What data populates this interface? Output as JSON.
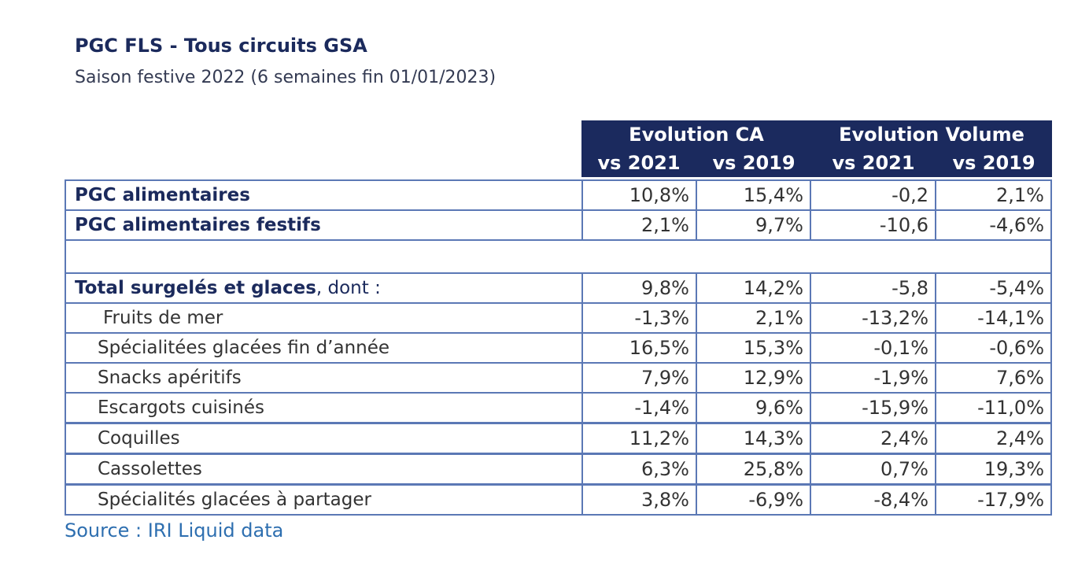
{
  "title": "PGC FLS - Tous circuits GSA",
  "subtitle": "Saison festive 2022 (6 semaines fin 01/01/2023)",
  "header": {
    "group1": "Evolution CA",
    "group2": "Evolution Volume",
    "cols": [
      "vs 2021",
      "vs 2019",
      "vs 2021",
      "vs 2019"
    ]
  },
  "rows": [
    {
      "label": "PGC alimentaires",
      "suffix": "",
      "values": [
        "10,8%",
        "15,4%",
        "-0,2",
        "2,1%"
      ]
    },
    {
      "label": "PGC alimentaires festifs",
      "suffix": "",
      "values": [
        "2,1%",
        "9,7%",
        "-10,6",
        "-4,6%"
      ]
    },
    {
      "label": "Total surgelés et glaces",
      "suffix": ", dont :",
      "values": [
        "9,8%",
        "14,2%",
        "-5,8",
        "-5,4%"
      ]
    },
    {
      "label": "Fruits de mer",
      "values": [
        "-1,3%",
        "2,1%",
        "-13,2%",
        "-14,1%"
      ]
    },
    {
      "label": "Spécialitées glacées fin d’année",
      "values": [
        "16,5%",
        "15,3%",
        "-0,1%",
        "-0,6%"
      ]
    },
    {
      "label": "Snacks apéritifs",
      "values": [
        "7,9%",
        "12,9%",
        "-1,9%",
        "7,6%"
      ]
    },
    {
      "label": "Escargots cuisinés",
      "values": [
        "-1,4%",
        "9,6%",
        "-15,9%",
        "-11,0%"
      ]
    },
    {
      "label": "Coquilles",
      "values": [
        "11,2%",
        "14,3%",
        "2,4%",
        "2,4%"
      ]
    },
    {
      "label": "Cassolettes",
      "values": [
        "6,3%",
        "25,8%",
        "0,7%",
        "19,3%"
      ]
    },
    {
      "label": "Spécialités glacées à partager",
      "values": [
        "3,8%",
        "-6,9%",
        "-8,4%",
        "-17,9%"
      ]
    }
  ],
  "source": "Source : IRI Liquid data"
}
